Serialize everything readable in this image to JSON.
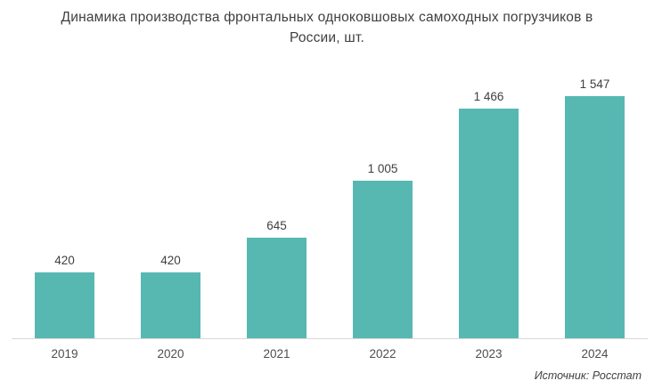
{
  "title": {
    "text": "Динамика производства фронтальных одноковшовых самоходных погрузчиков в России, шт."
  },
  "source": {
    "text": "Источник: Росстат"
  },
  "colors": {
    "bar": "#57B8B2",
    "axis_line": "#D9D9D9",
    "title_text": "#3F3F3F",
    "label_text": "#404040",
    "tick_text": "#4E4E4E"
  },
  "chart_data": {
    "type": "bar",
    "title": "Динамика производства фронтальных одноковшовых самоходных погрузчиков в России, шт.",
    "categories": [
      "2019",
      "2020",
      "2021",
      "2022",
      "2023",
      "2024"
    ],
    "values": [
      420,
      420,
      645,
      1005,
      1466,
      1547
    ],
    "value_labels": [
      "420",
      "420",
      "645",
      "1 005",
      "1 466",
      "1 547"
    ],
    "xlabel": "",
    "ylabel": "",
    "ylim": [
      0,
      1600
    ],
    "grid": false,
    "legend": false,
    "y_axis_visible": false,
    "data_labels_position": "above-bar",
    "source": "Источник: Росстат"
  }
}
